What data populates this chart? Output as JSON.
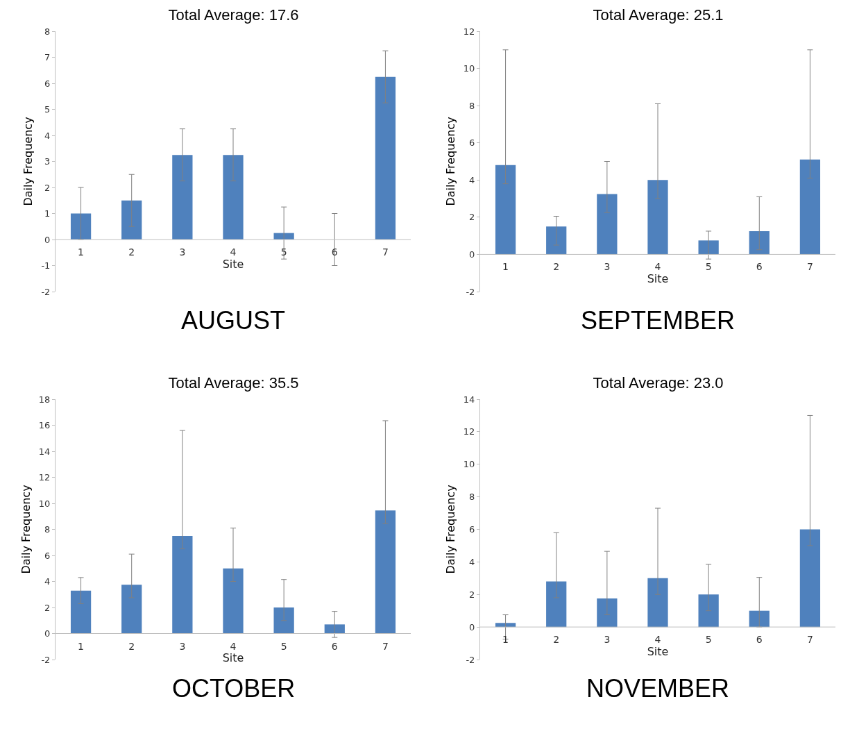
{
  "chart_data": [
    {
      "type": "bar",
      "title": "Total Average: 17.6",
      "xlabel": "Site",
      "ylabel": "Daily Frequency",
      "annotations": [
        "AUGUST"
      ],
      "categories": [
        "1",
        "2",
        "3",
        "4",
        "5",
        "6",
        "7"
      ],
      "values": [
        1,
        1.5,
        3.25,
        3.25,
        0.25,
        0,
        6.25
      ],
      "errors": [
        1,
        1,
        1,
        1,
        1,
        1,
        1
      ],
      "color": "#4f81bd",
      "ylim": [
        -2,
        8
      ],
      "yticks": [
        -2,
        -1,
        0,
        1,
        2,
        3,
        4,
        5,
        6,
        7,
        8
      ],
      "grid": false
    },
    {
      "type": "bar",
      "title": "Total Average: 25.1",
      "xlabel": "Site",
      "ylabel": "Daily Frequency",
      "annotations": [
        "SEPTEMBER"
      ],
      "categories": [
        "1",
        "2",
        "3",
        "4",
        "5",
        "6",
        "7"
      ],
      "values": [
        4.8,
        1.5,
        3.25,
        4,
        0.75,
        1.25,
        5.1
      ],
      "errors": [
        [
          3.8,
          11
        ],
        [
          0.5,
          2.05
        ],
        [
          2.25,
          5
        ],
        [
          3,
          8.1
        ],
        [
          -0.25,
          1.25
        ],
        [
          0.25,
          3.1
        ],
        [
          4.1,
          11
        ]
      ],
      "color": "#4f81bd",
      "ylim": [
        -2,
        12
      ],
      "yticks": [
        -2,
        0,
        2,
        4,
        6,
        8,
        10,
        12
      ],
      "grid": false
    },
    {
      "type": "bar",
      "title": "Total Average: 35.5",
      "xlabel": "Site",
      "ylabel": "Daily Frequency",
      "annotations": [
        "OCTOBER"
      ],
      "categories": [
        "1",
        "2",
        "3",
        "4",
        "5",
        "6",
        "7"
      ],
      "values": [
        3.3,
        3.75,
        7.5,
        5,
        2,
        0.7,
        9.45
      ],
      "errors": [
        1,
        [
          2.75,
          6.1
        ],
        [
          6.5,
          15.6
        ],
        [
          4,
          8.1
        ],
        [
          1,
          4.15
        ],
        1,
        [
          8.45,
          16.35
        ]
      ],
      "color": "#4f81bd",
      "ylim": [
        -2,
        18
      ],
      "yticks": [
        -2,
        0,
        2,
        4,
        6,
        8,
        10,
        12,
        14,
        16,
        18
      ],
      "grid": false
    },
    {
      "type": "bar",
      "title": "Total Average: 23.0",
      "xlabel": "Site",
      "ylabel": "Daily Frequency",
      "annotations": [
        "NOVEMBER"
      ],
      "categories": [
        "1",
        "2",
        "3",
        "4",
        "5",
        "6",
        "7"
      ],
      "values": [
        0.25,
        2.8,
        1.75,
        3,
        2,
        1,
        6
      ],
      "errors": [
        [
          -0.75,
          0.75
        ],
        [
          1.8,
          5.8
        ],
        [
          0.75,
          4.65
        ],
        [
          2,
          7.3
        ],
        [
          1,
          3.85
        ],
        [
          0,
          3.05
        ],
        [
          5,
          13
        ]
      ],
      "color": "#4f81bd",
      "ylim": [
        -2,
        14
      ],
      "yticks": [
        -2,
        0,
        2,
        4,
        6,
        8,
        10,
        12,
        14
      ],
      "grid": false
    }
  ]
}
